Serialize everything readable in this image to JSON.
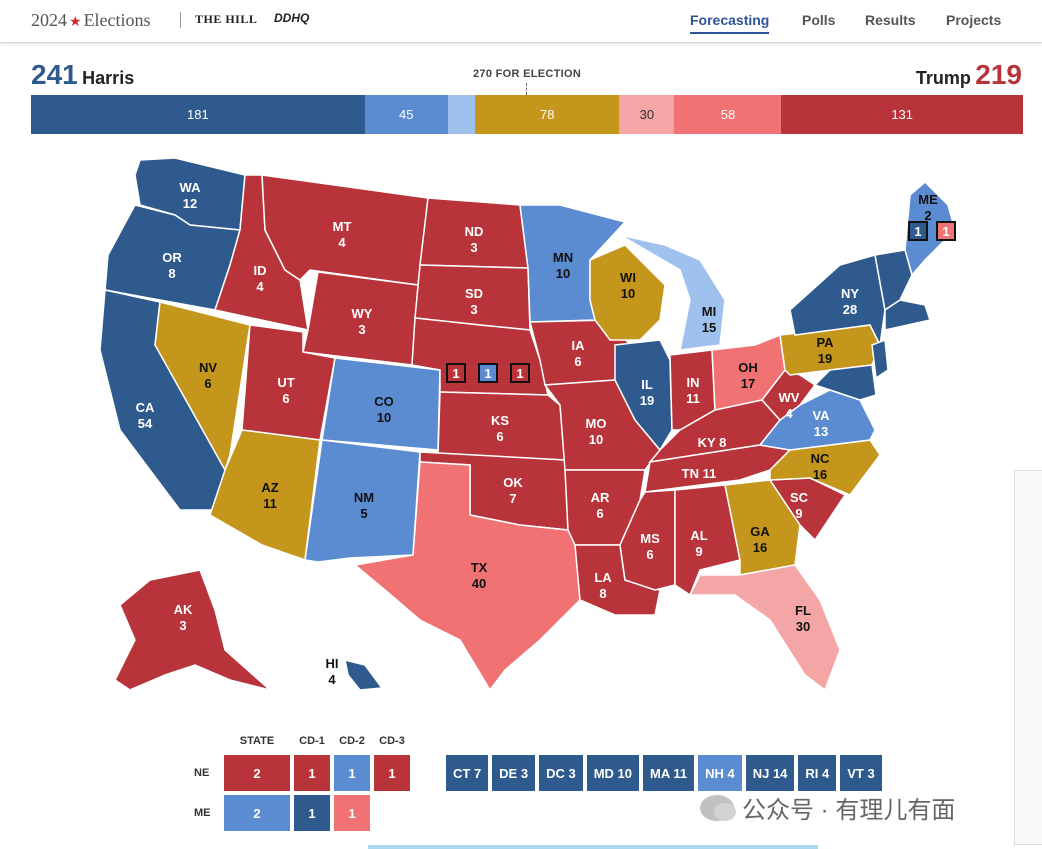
{
  "header": {
    "brand_year": "2024",
    "brand_word": "Elections",
    "partner_1": "THE HILL",
    "partner_2": "DDHQ",
    "nav": [
      "Forecasting",
      "Polls",
      "Results",
      "Projects"
    ],
    "active_nav": "Forecasting"
  },
  "score": {
    "dem_name": "Harris",
    "dem_votes": "241",
    "rep_name": "Trump",
    "rep_votes": "219",
    "threshold_label": "270 FOR ELECTION"
  },
  "colors": {
    "solid_dem": "#2f5a8e",
    "likely_dem": "#5b8bd1",
    "lean_dem": "#9fc1ee",
    "tossup": "#c4961b",
    "lean_rep": "#f4a5a5",
    "likely_rep": "#f07272",
    "solid_rep": "#b8343a"
  },
  "bar_segments": [
    {
      "category": "solid_dem",
      "votes": 181,
      "label": "181"
    },
    {
      "category": "likely_dem",
      "votes": 45,
      "label": "45"
    },
    {
      "category": "lean_dem",
      "votes": 15,
      "label": ""
    },
    {
      "category": "tossup",
      "votes": 78,
      "label": "78"
    },
    {
      "category": "lean_rep",
      "votes": 30,
      "label": "30"
    },
    {
      "category": "likely_rep",
      "votes": 58,
      "label": "58"
    },
    {
      "category": "solid_rep",
      "votes": 131,
      "label": "131"
    }
  ],
  "states": {
    "WA": {
      "abbr": "WA",
      "ev": "12",
      "rating": "solid_dem"
    },
    "OR": {
      "abbr": "OR",
      "ev": "8",
      "rating": "solid_dem"
    },
    "CA": {
      "abbr": "CA",
      "ev": "54",
      "rating": "solid_dem"
    },
    "ID": {
      "abbr": "ID",
      "ev": "4",
      "rating": "solid_rep"
    },
    "NV": {
      "abbr": "NV",
      "ev": "6",
      "rating": "tossup"
    },
    "MT": {
      "abbr": "MT",
      "ev": "4",
      "rating": "solid_rep"
    },
    "WY": {
      "abbr": "WY",
      "ev": "3",
      "rating": "solid_rep"
    },
    "UT": {
      "abbr": "UT",
      "ev": "6",
      "rating": "solid_rep"
    },
    "AZ": {
      "abbr": "AZ",
      "ev": "11",
      "rating": "tossup"
    },
    "CO": {
      "abbr": "CO",
      "ev": "10",
      "rating": "likely_dem"
    },
    "NM": {
      "abbr": "NM",
      "ev": "5",
      "rating": "likely_dem"
    },
    "ND": {
      "abbr": "ND",
      "ev": "3",
      "rating": "solid_rep"
    },
    "SD": {
      "abbr": "SD",
      "ev": "3",
      "rating": "solid_rep"
    },
    "NE": {
      "abbr": "NE",
      "ev": "2",
      "rating": "solid_rep"
    },
    "KS": {
      "abbr": "KS",
      "ev": "6",
      "rating": "solid_rep"
    },
    "OK": {
      "abbr": "OK",
      "ev": "7",
      "rating": "solid_rep"
    },
    "TX": {
      "abbr": "TX",
      "ev": "40",
      "rating": "likely_rep"
    },
    "MN": {
      "abbr": "MN",
      "ev": "10",
      "rating": "likely_dem"
    },
    "IA": {
      "abbr": "IA",
      "ev": "6",
      "rating": "solid_rep"
    },
    "MO": {
      "abbr": "MO",
      "ev": "10",
      "rating": "solid_rep"
    },
    "AR": {
      "abbr": "AR",
      "ev": "6",
      "rating": "solid_rep"
    },
    "LA": {
      "abbr": "LA",
      "ev": "8",
      "rating": "solid_rep"
    },
    "WI": {
      "abbr": "WI",
      "ev": "10",
      "rating": "tossup"
    },
    "IL": {
      "abbr": "IL",
      "ev": "19",
      "rating": "solid_dem"
    },
    "MI": {
      "abbr": "MI",
      "ev": "15",
      "rating": "lean_dem"
    },
    "IN": {
      "abbr": "IN",
      "ev": "11",
      "rating": "solid_rep"
    },
    "OH": {
      "abbr": "OH",
      "ev": "17",
      "rating": "likely_rep"
    },
    "KY": {
      "abbr": "KY",
      "ev": "8",
      "rating": "solid_rep"
    },
    "TN": {
      "abbr": "TN",
      "ev": "11",
      "rating": "solid_rep"
    },
    "MS": {
      "abbr": "MS",
      "ev": "6",
      "rating": "solid_rep"
    },
    "AL": {
      "abbr": "AL",
      "ev": "9",
      "rating": "solid_rep"
    },
    "GA": {
      "abbr": "GA",
      "ev": "16",
      "rating": "tossup"
    },
    "FL": {
      "abbr": "FL",
      "ev": "30",
      "rating": "lean_rep"
    },
    "SC": {
      "abbr": "SC",
      "ev": "9",
      "rating": "solid_rep"
    },
    "NC": {
      "abbr": "NC",
      "ev": "16",
      "rating": "tossup"
    },
    "VA": {
      "abbr": "VA",
      "ev": "13",
      "rating": "likely_dem"
    },
    "WV": {
      "abbr": "WV",
      "ev": "4",
      "rating": "solid_rep"
    },
    "PA": {
      "abbr": "PA",
      "ev": "19",
      "rating": "tossup"
    },
    "NY": {
      "abbr": "NY",
      "ev": "28",
      "rating": "solid_dem"
    },
    "ME": {
      "abbr": "ME",
      "ev": "2",
      "rating": "likely_dem"
    },
    "AK": {
      "abbr": "AK",
      "ev": "3",
      "rating": "solid_rep"
    },
    "HI": {
      "abbr": "HI",
      "ev": "4",
      "rating": "solid_dem"
    }
  },
  "map_district_boxes": {
    "ne": [
      "1",
      "1",
      "1"
    ],
    "me": [
      "1",
      "1"
    ]
  },
  "district_table": {
    "headers": [
      "STATE",
      "CD-1",
      "CD-2",
      "CD-3"
    ],
    "rows": [
      {
        "label": "NE",
        "cells": [
          {
            "value": "2",
            "rating": "solid_rep"
          },
          {
            "value": "1",
            "rating": "solid_rep"
          },
          {
            "value": "1",
            "rating": "likely_dem"
          },
          {
            "value": "1",
            "rating": "solid_rep"
          }
        ]
      },
      {
        "label": "ME",
        "cells": [
          {
            "value": "2",
            "rating": "likely_dem"
          },
          {
            "value": "1",
            "rating": "solid_dem"
          },
          {
            "value": "1",
            "rating": "likely_rep"
          }
        ]
      }
    ]
  },
  "small_states": [
    {
      "label": "CT 7",
      "rating": "solid_dem"
    },
    {
      "label": "DE 3",
      "rating": "solid_dem"
    },
    {
      "label": "DC 3",
      "rating": "solid_dem"
    },
    {
      "label": "MD 10",
      "rating": "solid_dem"
    },
    {
      "label": "MA 11",
      "rating": "solid_dem"
    },
    {
      "label": "NH 4",
      "rating": "likely_dem"
    },
    {
      "label": "NJ 14",
      "rating": "solid_dem"
    },
    {
      "label": "RI 4",
      "rating": "solid_dem"
    },
    {
      "label": "VT 3",
      "rating": "solid_dem"
    }
  ],
  "watermark": "公众号 · 有理儿有面"
}
